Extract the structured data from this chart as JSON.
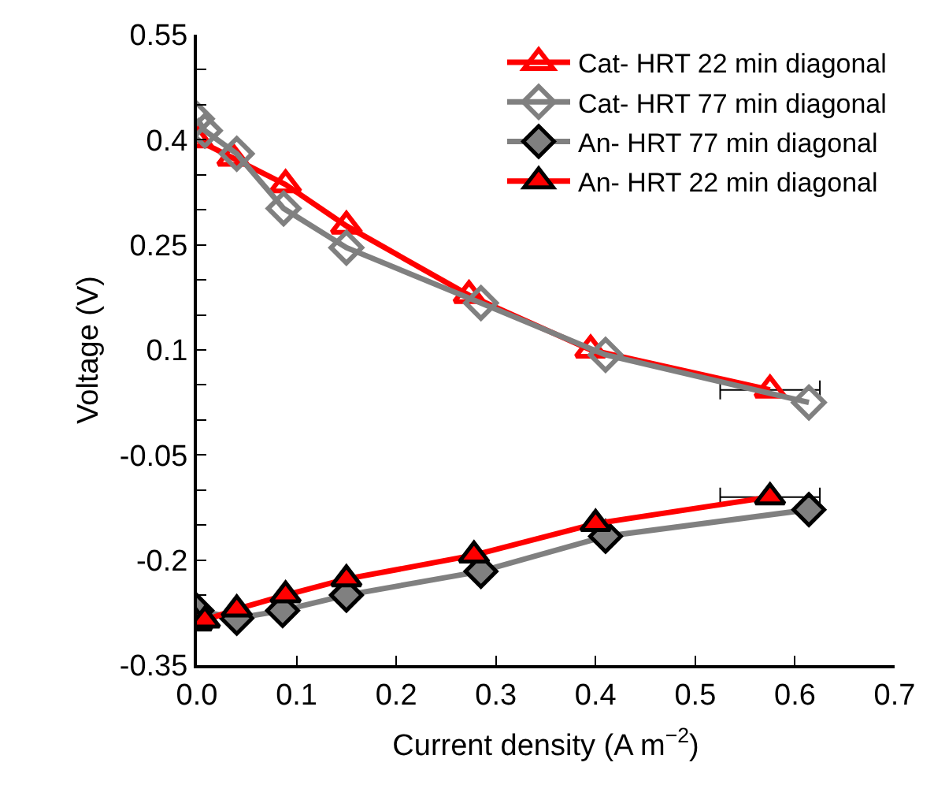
{
  "chart_data": {
    "type": "line",
    "xlabel": "Current density (A m$^{−2}$)",
    "ylabel": "Voltage (V)",
    "xlim": [
      0,
      0.7
    ],
    "xticks": [
      {
        "value": 0,
        "label": "0.0"
      },
      0.1,
      0.2,
      0.3,
      0.4,
      0.5,
      0.6,
      0.7
    ],
    "ylim": [
      -0.35,
      0.55
    ],
    "yticks": [
      -0.35,
      {
        "value": -0.3,
        "label": null
      },
      {
        "value": -0.25,
        "label": null
      },
      -0.2,
      {
        "value": -0.15,
        "label": null
      },
      {
        "value": -0.1,
        "label": null
      },
      -0.05,
      {
        "value": 0,
        "label": null
      },
      {
        "value": 0.05,
        "label": null
      },
      0.1,
      {
        "value": 0.15,
        "label": null
      },
      {
        "value": 0.2,
        "label": null
      },
      0.25,
      {
        "value": 0.3,
        "label": null
      },
      {
        "value": 0.35,
        "label": null
      },
      0.4,
      {
        "value": 0.45,
        "label": null
      },
      {
        "value": 0.5,
        "label": null
      },
      0.55
    ],
    "legend": "top right",
    "series": [
      {
        "name": "Cat- HRT 22 min diagonal",
        "color": "#ff0000",
        "marker": "triangle",
        "x": [
          0.0,
          0.036,
          0.089,
          0.15,
          0.273,
          0.395,
          0.575
        ],
        "values": [
          0.4,
          0.374,
          0.336,
          0.277,
          0.178,
          0.1,
          0.043
        ],
        "xerrors": [
          null,
          null,
          null,
          null,
          null,
          null,
          0.05
        ]
      },
      {
        "name": "Cat- HRT 77 min diagonal",
        "color": "#808080",
        "marker": "diamond",
        "x": [
          0.0,
          0.008,
          0.04,
          0.087,
          0.15,
          0.285,
          0.41,
          0.614
        ],
        "values": [
          0.43,
          0.413,
          0.38,
          0.302,
          0.246,
          0.167,
          0.093,
          0.025
        ]
      },
      {
        "name": "An- HRT 77 min diagonal",
        "color": "#808080",
        "marker": "diamond",
        "x": [
          0.0,
          0.04,
          0.086,
          0.15,
          0.285,
          0.41,
          0.614
        ],
        "values": [
          -0.272,
          -0.283,
          -0.272,
          -0.25,
          -0.216,
          -0.166,
          -0.128
        ]
      },
      {
        "name": "An- HRT 22 min diagonal",
        "color": "#ff0000",
        "marker": "triangle",
        "x": [
          0.0,
          0.008,
          0.04,
          0.089,
          0.15,
          0.278,
          0.4,
          0.575
        ],
        "values": [
          -0.29,
          -0.286,
          -0.27,
          -0.25,
          -0.227,
          -0.193,
          -0.148,
          -0.11
        ],
        "xerrors": [
          null,
          null,
          null,
          null,
          null,
          null,
          null,
          0.05
        ]
      }
    ]
  }
}
